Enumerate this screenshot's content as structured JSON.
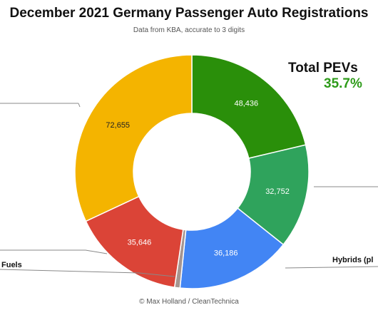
{
  "chart_data": {
    "type": "pie",
    "style": "donut",
    "title": "December 2021 Germany Passenger Auto Registrations",
    "subtitle": "Data from KBA, accurate to 3 digits",
    "slices": [
      {
        "value": 48436,
        "label": "48,436",
        "color": "#2a8f0a"
      },
      {
        "value": 32752,
        "label": "32,752",
        "color": "#2fa35c"
      },
      {
        "value": 36186,
        "label": "36,186",
        "color": "#4285f4"
      },
      {
        "value": 1700,
        "label": "",
        "color": "#a69590"
      },
      {
        "value": 35646,
        "label": "35,646",
        "color": "#db4437"
      },
      {
        "value": 72655,
        "label": "72,655",
        "color": "#f4b400"
      }
    ],
    "callouts": [
      {
        "text": "Hybrids (pl"
      },
      {
        "text": "Fuels"
      }
    ]
  },
  "annotation": {
    "label": "Total PEVs",
    "value": "35.7%",
    "value_color": "#2e9b1a"
  },
  "footer": "© Max Holland / CleanTechnica"
}
